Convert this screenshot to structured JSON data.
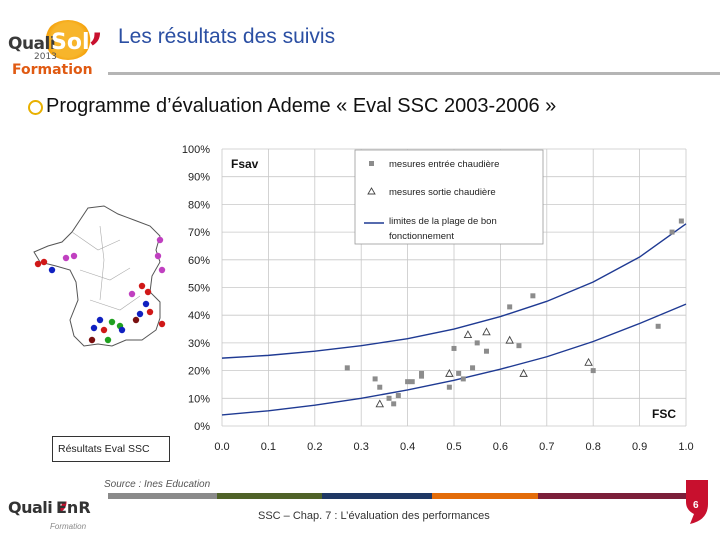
{
  "header": {
    "logo": {
      "brand": "Quali",
      "brand_accent": "Sol",
      "year": "2013",
      "subtitle": "Formation"
    },
    "title": "Les résultats des suivis"
  },
  "bullet": {
    "text": "Programme d’évaluation Ademe « Eval SSC 2003-2006 »"
  },
  "map": {
    "caption": "Résultats Eval SSC",
    "site_colors": [
      "#c040c0",
      "#d01818",
      "#1020c0",
      "#20a020",
      "#7a1010"
    ]
  },
  "chart_data": {
    "type": "scatter",
    "title": "Fsav",
    "xlabel": "FSC",
    "ylabel": "",
    "xlim": [
      0.0,
      1.0
    ],
    "ylim": [
      0.0,
      1.0
    ],
    "x_ticks": [
      "0.0",
      "0.1",
      "0.2",
      "0.3",
      "0.4",
      "0.5",
      "0.6",
      "0.7",
      "0.8",
      "0.9",
      "1.0"
    ],
    "y_ticks": [
      "0%",
      "10%",
      "20%",
      "30%",
      "40%",
      "50%",
      "60%",
      "70%",
      "80%",
      "90%",
      "100%"
    ],
    "grid": true,
    "legend_position": "top-right",
    "series": [
      {
        "name": "mesures entrée chaudière",
        "marker": "square",
        "color": "#8c8c8c",
        "points": [
          [
            0.27,
            0.21
          ],
          [
            0.33,
            0.17
          ],
          [
            0.34,
            0.14
          ],
          [
            0.36,
            0.1
          ],
          [
            0.37,
            0.08
          ],
          [
            0.38,
            0.11
          ],
          [
            0.4,
            0.16
          ],
          [
            0.41,
            0.16
          ],
          [
            0.43,
            0.18
          ],
          [
            0.43,
            0.19
          ],
          [
            0.49,
            0.14
          ],
          [
            0.5,
            0.28
          ],
          [
            0.51,
            0.19
          ],
          [
            0.52,
            0.17
          ],
          [
            0.54,
            0.21
          ],
          [
            0.55,
            0.3
          ],
          [
            0.57,
            0.27
          ],
          [
            0.62,
            0.43
          ],
          [
            0.64,
            0.29
          ],
          [
            0.67,
            0.47
          ],
          [
            0.8,
            0.2
          ],
          [
            0.94,
            0.36
          ],
          [
            0.97,
            0.7
          ],
          [
            0.99,
            0.74
          ]
        ]
      },
      {
        "name": "mesures sortie chaudière",
        "marker": "triangle",
        "color": "#444444",
        "points": [
          [
            0.34,
            0.08
          ],
          [
            0.49,
            0.19
          ],
          [
            0.53,
            0.33
          ],
          [
            0.57,
            0.34
          ],
          [
            0.62,
            0.31
          ],
          [
            0.65,
            0.19
          ],
          [
            0.79,
            0.23
          ]
        ]
      },
      {
        "name": "limites de la plage de bon fonctionnement",
        "type": "line",
        "color": "#1f3a93",
        "curves": [
          [
            [
              0.0,
              0.245
            ],
            [
              0.1,
              0.255
            ],
            [
              0.2,
              0.27
            ],
            [
              0.3,
              0.29
            ],
            [
              0.4,
              0.315
            ],
            [
              0.5,
              0.35
            ],
            [
              0.6,
              0.395
            ],
            [
              0.7,
              0.45
            ],
            [
              0.8,
              0.52
            ],
            [
              0.9,
              0.61
            ],
            [
              1.0,
              0.73
            ]
          ],
          [
            [
              0.0,
              0.04
            ],
            [
              0.1,
              0.055
            ],
            [
              0.2,
              0.075
            ],
            [
              0.3,
              0.1
            ],
            [
              0.4,
              0.13
            ],
            [
              0.5,
              0.165
            ],
            [
              0.6,
              0.205
            ],
            [
              0.7,
              0.25
            ],
            [
              0.8,
              0.305
            ],
            [
              0.9,
              0.37
            ],
            [
              1.0,
              0.44
            ]
          ]
        ]
      }
    ],
    "legend_entries": [
      "mesures entrée chaudière",
      "mesures sortie chaudière",
      "limites de la plage de bon",
      "fonctionnement"
    ]
  },
  "footer": {
    "source": "Source : Ines Education",
    "text": "SSC – Chap. 7 : L’évaluation des performances",
    "page": "6",
    "logo_brand": "Quali",
    "logo_accent": "EnR",
    "logo_subtitle": "Formation"
  }
}
